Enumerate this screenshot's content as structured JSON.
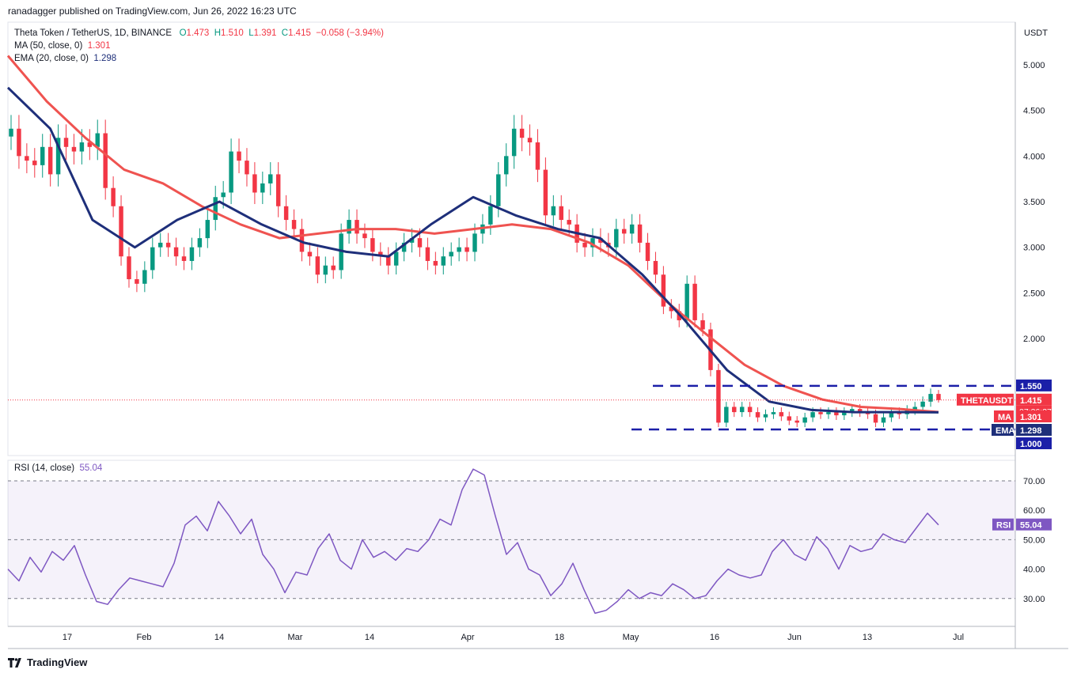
{
  "header": {
    "published_by": "ranadagger published on TradingView.com, Jun 26, 2022 16:23 UTC"
  },
  "legend": {
    "symbol": "Theta Token / TetherUS, 1D, BINANCE",
    "open_label": "O",
    "open": "1.473",
    "high_label": "H",
    "high": "1.510",
    "low_label": "L",
    "low": "1.391",
    "close_label": "C",
    "close": "1.415",
    "change": "−0.058 (−3.94%)",
    "ma_label": "MA (50, close, 0)",
    "ma_value": "1.301",
    "ema_label": "EMA (20, close, 0)",
    "ema_value": "1.298"
  },
  "rsi": {
    "label": "RSI (14, close)",
    "value": "55.04"
  },
  "footer": {
    "brand": "TradingView"
  },
  "price_axis": {
    "currency": "USDT"
  },
  "badges": {
    "symbol": "THETAUSDT",
    "price": "1.415",
    "countdown": "07:36:37",
    "ma": "MA",
    "ma_value": "1.301",
    "ema": "EMA",
    "ema_value": "1.298",
    "level_high": "1.550",
    "level_low": "1.000",
    "rsi": "RSI",
    "rsi_value": "55.04"
  },
  "colors": {
    "up": "#089981",
    "down": "#f23645",
    "ma": "#ef5350",
    "ema": "#1e2f7a",
    "rsi": "#7e57c2",
    "level": "#1b1fa8"
  },
  "chart_data": [
    {
      "type": "candlestick",
      "title": "Theta Token / TetherUS, 1D, BINANCE",
      "ylabel": "USDT",
      "ylim": [
        1.0,
        5.0
      ],
      "yticks": [
        "5.000",
        "4.500",
        "4.000",
        "3.500",
        "3.000",
        "2.500",
        "2.000"
      ],
      "xticks": [
        "17",
        "Feb",
        "14",
        "Mar",
        "14",
        "Apr",
        "18",
        "May",
        "16",
        "Jun",
        "13",
        "Jul"
      ],
      "horizontal_levels": [
        1.55,
        1.0
      ],
      "close": [
        4.3,
        4.0,
        3.95,
        3.9,
        4.1,
        3.8,
        4.2,
        4.1,
        4.05,
        4.15,
        4.1,
        4.25,
        3.65,
        3.45,
        2.9,
        2.65,
        2.6,
        2.75,
        3.0,
        3.05,
        3.0,
        2.9,
        2.85,
        3.0,
        3.1,
        3.3,
        3.55,
        3.6,
        4.05,
        3.95,
        3.8,
        3.6,
        3.7,
        3.8,
        3.45,
        3.3,
        3.2,
        2.95,
        2.9,
        2.7,
        2.8,
        2.75,
        3.15,
        3.3,
        3.15,
        3.1,
        2.95,
        2.9,
        2.8,
        2.95,
        3.05,
        3.1,
        3.0,
        2.85,
        2.8,
        2.9,
        2.95,
        3.0,
        2.95,
        3.15,
        3.25,
        3.45,
        3.8,
        4.0,
        4.3,
        4.2,
        4.15,
        3.85,
        3.35,
        3.45,
        3.3,
        3.25,
        3.05,
        3.0,
        3.1,
        3.05,
        3.0,
        3.2,
        3.15,
        3.25,
        3.05,
        2.85,
        2.7,
        2.35,
        2.3,
        2.2,
        2.6,
        2.2,
        2.1,
        1.7,
        1.2,
        1.35,
        1.3,
        1.35,
        1.3,
        1.25,
        1.28,
        1.3,
        1.26,
        1.22,
        1.2,
        1.25,
        1.3,
        1.28,
        1.3,
        1.27,
        1.3,
        1.33,
        1.3,
        1.28,
        1.2,
        1.25,
        1.3,
        1.28,
        1.32,
        1.35,
        1.4,
        1.473,
        1.415
      ],
      "ma_50": [
        5.1,
        4.6,
        4.2,
        3.85,
        3.7,
        3.45,
        3.25,
        3.1,
        3.15,
        3.2,
        3.2,
        3.15,
        3.2,
        3.25,
        3.2,
        3.05,
        2.8,
        2.4,
        2.05,
        1.75,
        1.55,
        1.42,
        1.35,
        1.33,
        1.301
      ],
      "ema_20": [
        4.75,
        4.3,
        3.3,
        3.0,
        3.3,
        3.5,
        3.25,
        3.05,
        2.95,
        2.9,
        3.25,
        3.55,
        3.35,
        3.2,
        3.1,
        2.7,
        2.2,
        1.7,
        1.4,
        1.32,
        1.3,
        1.3,
        1.298
      ],
      "last": {
        "open": 1.473,
        "high": 1.51,
        "low": 1.391,
        "close": 1.415,
        "ma": 1.301,
        "ema": 1.298
      }
    },
    {
      "type": "line",
      "title": "RSI (14, close)",
      "ylim": [
        25,
        76
      ],
      "yticks": [
        "70.00",
        "60.00",
        "50.00",
        "40.00",
        "30.00"
      ],
      "band": [
        30,
        70
      ],
      "values": [
        40,
        36,
        44,
        39,
        46,
        43,
        48,
        38,
        29,
        28,
        33,
        37,
        36,
        35,
        34,
        42,
        55,
        58,
        53,
        63,
        58,
        52,
        57,
        45,
        40,
        32,
        39,
        38,
        47,
        52,
        43,
        40,
        50,
        44,
        46,
        43,
        47,
        46,
        50,
        57,
        55,
        67,
        74,
        72,
        58,
        45,
        49,
        40,
        38,
        31,
        35,
        42,
        33,
        25,
        26,
        29,
        33,
        30,
        32,
        31,
        35,
        33,
        30,
        31,
        36,
        40,
        38,
        37,
        38,
        46,
        50,
        45,
        43,
        51,
        47,
        40,
        48,
        46,
        47,
        52,
        50,
        49,
        54,
        59,
        55.04
      ],
      "last": 55.04
    }
  ]
}
